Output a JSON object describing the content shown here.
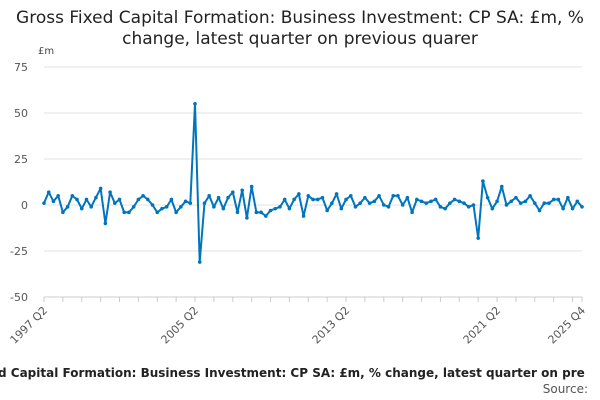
{
  "chart_data": {
    "type": "line",
    "title": "Gross Fixed Capital Formation: Business Investment: CP SA: £m, % change, latest quarter on previous quarer",
    "unit_label": "£m",
    "xlabel": "",
    "ylabel": "",
    "ylim": [
      -50,
      75
    ],
    "yticks": [
      75,
      50,
      25,
      0,
      -25,
      -50
    ],
    "ytick_labels": [
      "75",
      "50",
      "25",
      "0",
      "-25",
      "-50"
    ],
    "xtick_labels": [
      "1997 Q2",
      "2005 Q2",
      "2013 Q2",
      "2021 Q2",
      "2025 Q4"
    ],
    "xtick_index": [
      0,
      32,
      64,
      96,
      114
    ],
    "x_start": "1997 Q2",
    "x_end": "2025 Q4",
    "grid": "horizontal",
    "color": "#0075be",
    "values": [
      1,
      7,
      2,
      5,
      -4,
      -1,
      5,
      3,
      -2,
      3,
      -1,
      4,
      9,
      -10,
      7,
      1,
      3,
      -4,
      -4,
      -1,
      3,
      5,
      3,
      0,
      -4,
      -2,
      -1,
      3,
      -4,
      -1,
      2,
      1,
      55,
      -31,
      1,
      5,
      -1,
      4,
      -2,
      4,
      7,
      -4,
      8,
      -7,
      10,
      -4,
      -4,
      -6,
      -3,
      -2,
      -1,
      3,
      -2,
      3,
      6,
      -6,
      5,
      3,
      3,
      4,
      -3,
      1,
      6,
      -2,
      3,
      5,
      -1,
      1,
      4,
      1,
      2,
      5,
      0,
      -1,
      5,
      5,
      0,
      4,
      -4,
      3,
      2,
      1,
      2,
      3,
      -1,
      -2,
      1,
      3,
      2,
      1,
      -1,
      0,
      -18,
      13,
      4,
      -2,
      2,
      10,
      0,
      2,
      4,
      1,
      2,
      5,
      1,
      -3,
      1,
      1,
      3,
      3,
      -2,
      4,
      -2,
      2,
      -1
    ]
  },
  "footer": {
    "caption": "d Capital Formation: Business Investment: CP SA: £m, % change, latest quarter on pre",
    "source": "Source:"
  }
}
